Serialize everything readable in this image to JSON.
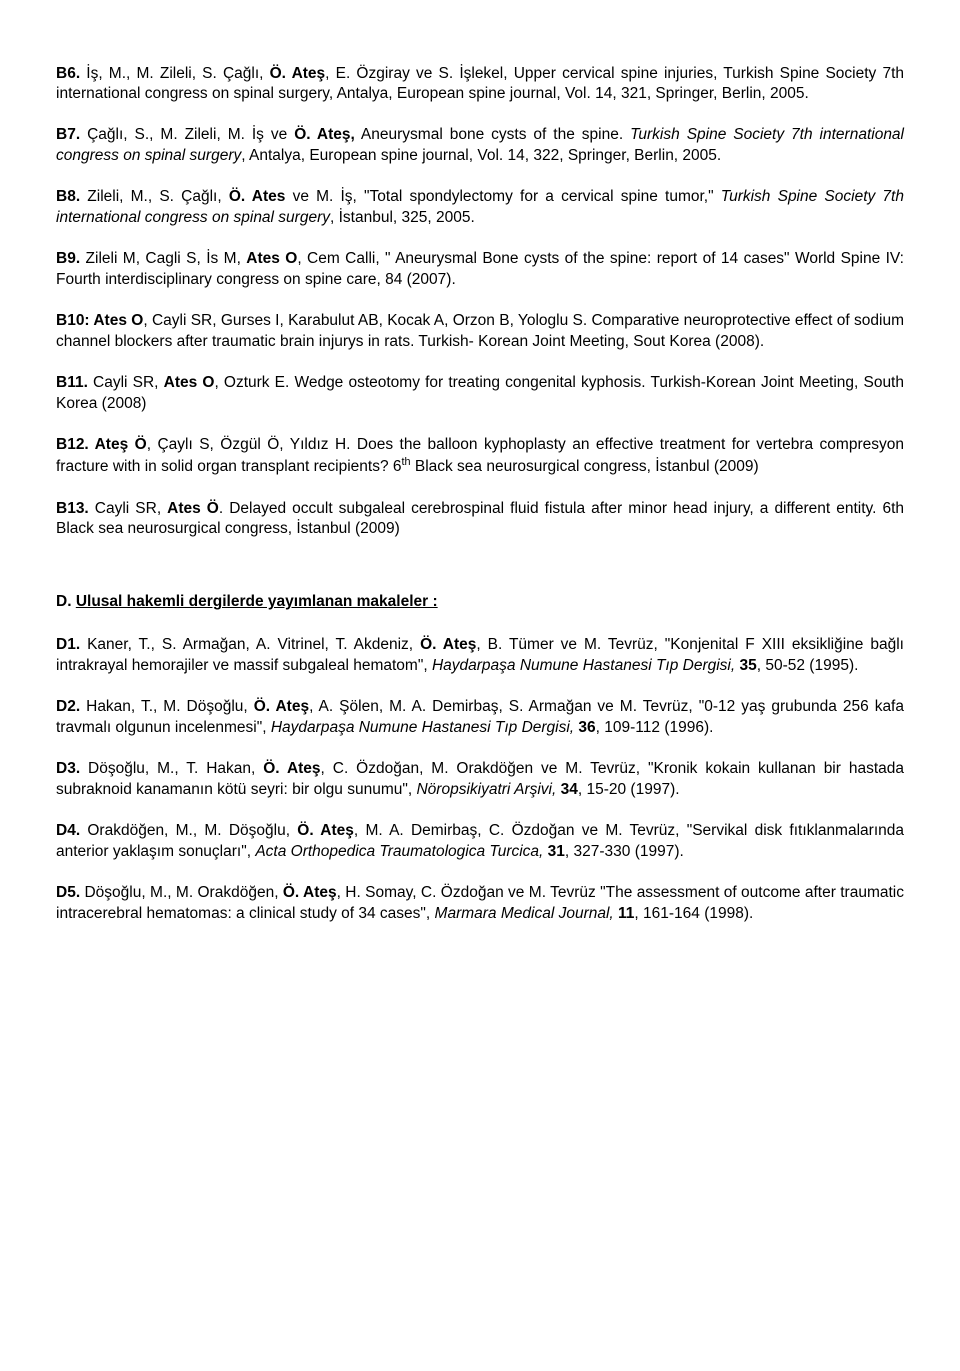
{
  "entries_b": [
    {
      "id": "B6.",
      "parts": [
        {
          "t": " İş, M., M. Zileli, S. Çağlı, "
        },
        {
          "t": "Ö. Ateş",
          "b": true
        },
        {
          "t": ", E. Özgiray ve S. İşlekel, Upper cervical spine injuries, Turkish Spine Society 7th international congress on spinal surgery, Antalya, European spine journal, Vol. 14, 321, Springer, Berlin, 2005."
        }
      ]
    },
    {
      "id": "B7.",
      "parts": [
        {
          "t": " Çağlı, S., M. Zileli, M. İş ve "
        },
        {
          "t": "Ö. Ateş,",
          "b": true
        },
        {
          "t": " Aneurysmal bone cysts of the spine. "
        },
        {
          "t": "Turkish Spine Society 7th international congress on spinal surgery",
          "i": true
        },
        {
          "t": ", Antalya, European spine journal, Vol. 14, 322, Springer, Berlin, 2005."
        }
      ]
    },
    {
      "id": "B8.",
      "parts": [
        {
          "t": " Zileli, M., S. Çağlı, "
        },
        {
          "t": "Ö. Ates",
          "b": true
        },
        {
          "t": " ve M. İş, \"Total spondylectomy for a cervical spine tumor,\" "
        },
        {
          "t": "Turkish Spine Society 7th international congress on spinal surgery",
          "i": true
        },
        {
          "t": ", İstanbul, 325, 2005."
        }
      ]
    },
    {
      "id": "B9.",
      "parts": [
        {
          "t": " Zileli M, Cagli S, İs M, "
        },
        {
          "t": "Ates O",
          "b": true
        },
        {
          "t": ", Cem Calli, \" Aneurysmal Bone cysts of the spine: report of 14 cases\" World Spine IV: Fourth interdisciplinary congress on spine care, 84 (2007)."
        }
      ]
    },
    {
      "id": "B10: Ates O",
      "parts": [
        {
          "t": ", Cayli SR, Gurses I, Karabulut AB, Kocak A, Orzon B, Yologlu S. Comparative neuroprotective effect of sodium channel blockers after traumatic brain injurys in rats. Turkish- Korean Joint Meeting, Sout Korea (2008)."
        }
      ]
    },
    {
      "id": "B11.",
      "parts": [
        {
          "t": " Cayli SR, "
        },
        {
          "t": "Ates O",
          "b": true
        },
        {
          "t": ", Ozturk E. Wedge osteotomy for treating congenital kyphosis. Turkish-Korean Joint Meeting, South Korea (2008)"
        }
      ]
    },
    {
      "id": "B12. Ateş Ö",
      "parts": [
        {
          "t": ", Çaylı S, Özgül Ö, Yıldız H. Does the balloon kyphoplasty an effective treatment for vertebra compresyon fracture with in solid organ transplant recipients? 6"
        },
        {
          "t": "th",
          "sup": true
        },
        {
          "t": " Black sea neurosurgical congress, İstanbul (2009)"
        }
      ]
    },
    {
      "id": "B13.",
      "parts": [
        {
          "t": " Cayli SR, "
        },
        {
          "t": "Ates Ö",
          "b": true
        },
        {
          "t": ". Delayed occult subgaleal cerebrospinal fluid fistula after minor head injury, a different entity. 6th Black sea neurosurgical congress, İstanbul (2009)"
        }
      ]
    }
  ],
  "section_d": {
    "prefix": "D.",
    "title": "Ulusal hakemli dergilerde yayımlanan makaleler :"
  },
  "entries_d": [
    {
      "id": "D1.",
      "parts": [
        {
          "t": " Kaner, T., S. Armağan, A. Vitrinel, T. Akdeniz, "
        },
        {
          "t": "Ö. Ateş",
          "b": true
        },
        {
          "t": ", B. Tümer ve M. Tevrüz, \"Konjenital F XIII eksikliğine bağlı intrakrayal hemorajiler ve massif subgaleal hematom\", "
        },
        {
          "t": "Haydarpaşa Numune Hastanesi Tıp Dergisi, ",
          "i": true
        },
        {
          "t": "35",
          "b": true
        },
        {
          "t": ", 50-52 (1995)."
        }
      ]
    },
    {
      "id": "D2.",
      "parts": [
        {
          "t": " Hakan, T., M. Döşoğlu, "
        },
        {
          "t": "Ö. Ateş",
          "b": true
        },
        {
          "t": ", A. Şölen, M. A. Demirbaş, S. Armağan ve M. Tevrüz,  \"0-12 yaş grubunda 256 kafa travmalı olgunun incelenmesi\", "
        },
        {
          "t": "Haydarpaşa Numune Hastanesi Tıp Dergisi, ",
          "i": true
        },
        {
          "t": "36",
          "b": true
        },
        {
          "t": ", 109-112 (1996)."
        }
      ]
    },
    {
      "id": "D3.",
      "parts": [
        {
          "t": " Döşoğlu, M., T. Hakan, "
        },
        {
          "t": "Ö. Ateş",
          "b": true
        },
        {
          "t": ", C. Özdoğan, M. Orakdöğen ve M. Tevrüz, \"Kronik kokain kullanan bir hastada subraknoid kanamanın kötü seyri: bir olgu sunumu\", "
        },
        {
          "t": "Nöropsikiyatri Arşivi, ",
          "i": true
        },
        {
          "t": "34",
          "b": true
        },
        {
          "t": ", 15-20 (1997)."
        }
      ]
    },
    {
      "id": "D4.",
      "parts": [
        {
          "t": " Orakdöğen, M., M. Döşoğlu, "
        },
        {
          "t": "Ö. Ateş",
          "b": true
        },
        {
          "t": ", M. A. Demirbaş, C. Özdoğan ve M. Tevrüz, \"Servikal disk fıtıklanmalarında anterior yaklaşım sonuçları\", "
        },
        {
          "t": "Acta Orthopedica Traumatologica Turcica, ",
          "i": true
        },
        {
          "t": "31",
          "b": true
        },
        {
          "t": ", 327-330 (1997)."
        }
      ]
    },
    {
      "id": "D5.",
      "parts": [
        {
          "t": " Döşoğlu, M., M. Orakdöğen, "
        },
        {
          "t": "Ö. Ateş",
          "b": true
        },
        {
          "t": ", H. Somay, C. Özdoğan ve M. Tevrüz \"The assessment of outcome after traumatic intracerebral hematomas: a clinical study of 34 cases\", "
        },
        {
          "t": "Marmara Medical Journal, ",
          "i": true
        },
        {
          "t": "11",
          "b": true
        },
        {
          "t": ", 161-164 (1998)."
        }
      ]
    }
  ]
}
